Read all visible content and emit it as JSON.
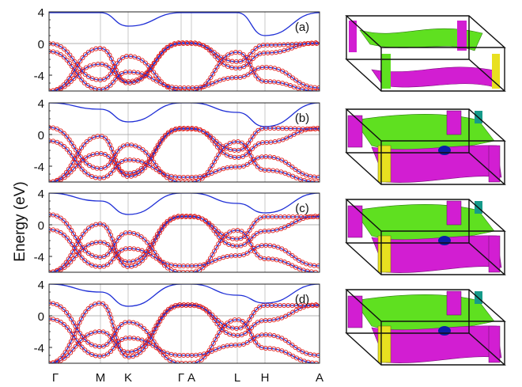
{
  "figure": {
    "ylabel": "Energy (eV)",
    "kpath": [
      "Γ",
      "M",
      "K",
      "Γ",
      "A",
      "L",
      "H",
      "A"
    ]
  },
  "colors": {
    "dft_line": "#1f2fd6",
    "wannier_circle": "#e0201c",
    "fermi_green": "#5fe020",
    "fermi_magenta": "#d21ed2",
    "fermi_yellow": "#e8e020",
    "fermi_blue": "#0a1fa6",
    "fermi_teal": "#169a8a",
    "box": "#111111"
  },
  "chart_data": [
    {
      "type": "line",
      "panel": "(a)",
      "ylim": [
        -6,
        4
      ],
      "yticks": [
        "4",
        "0",
        "-4"
      ],
      "fermi_level": 0,
      "kpath": [
        "Γ",
        "M",
        "K",
        "Γ",
        "A",
        "L",
        "H",
        "A"
      ],
      "series": [
        {
          "values": [
            -6.0,
            -2.6,
            -4.8,
            0.1,
            0.1,
            -3.1,
            -1.2,
            0.1
          ]
        },
        {
          "values": [
            -6.0,
            -0.6,
            -5.0,
            0.0,
            0.0,
            -2.3,
            -0.2,
            0.0
          ]
        },
        {
          "values": [
            0.0,
            -4.6,
            -1.6,
            -6.0,
            -6.0,
            -1.1,
            -4.8,
            -6.0
          ]
        },
        {
          "values": [
            -1.0,
            -5.8,
            -3.6,
            -5.6,
            -5.6,
            -4.3,
            -3.0,
            -5.6
          ]
        },
        {
          "values": [
            3.9,
            3.9,
            2.2,
            3.9,
            3.9,
            3.9,
            1.0,
            3.9
          ]
        }
      ]
    },
    {
      "type": "line",
      "panel": "(b)",
      "ylim": [
        -6,
        4
      ],
      "yticks": [
        "4",
        "0",
        "-4"
      ],
      "fermi_level": 0,
      "kpath": [
        "Γ",
        "M",
        "K",
        "Γ",
        "A",
        "L",
        "H",
        "A"
      ],
      "series": [
        {
          "values": [
            -6.0,
            -2.4,
            -4.9,
            0.8,
            0.8,
            -2.9,
            -1.0,
            0.8
          ]
        },
        {
          "values": [
            -6.0,
            -0.2,
            -5.3,
            0.7,
            0.7,
            -2.0,
            0.8,
            0.7
          ]
        },
        {
          "values": [
            0.9,
            -4.3,
            -1.3,
            -6.0,
            -6.0,
            -0.9,
            -4.5,
            -6.0
          ]
        },
        {
          "values": [
            -0.8,
            -5.5,
            -3.2,
            -5.4,
            -5.4,
            -4.1,
            -2.8,
            -5.4
          ]
        },
        {
          "values": [
            4.0,
            3.2,
            1.6,
            4.0,
            4.0,
            2.8,
            1.0,
            4.0
          ]
        }
      ]
    },
    {
      "type": "line",
      "panel": "(c)",
      "ylim": [
        -6,
        4
      ],
      "yticks": [
        "4",
        "0",
        "-4"
      ],
      "fermi_level": 0,
      "kpath": [
        "Γ",
        "M",
        "K",
        "Γ",
        "A",
        "L",
        "H",
        "A"
      ],
      "series": [
        {
          "values": [
            -6.0,
            -2.2,
            -4.7,
            1.1,
            1.1,
            -2.7,
            -0.8,
            1.1
          ]
        },
        {
          "values": [
            -6.0,
            0.1,
            -5.3,
            1.0,
            1.0,
            -1.8,
            1.0,
            1.0
          ]
        },
        {
          "values": [
            1.3,
            -4.1,
            -1.0,
            -6.0,
            -6.0,
            -0.7,
            -4.3,
            -6.0
          ]
        },
        {
          "values": [
            -0.6,
            -5.3,
            -3.0,
            -5.2,
            -5.2,
            -3.9,
            -2.6,
            -5.2
          ]
        },
        {
          "values": [
            4.0,
            3.0,
            1.3,
            4.0,
            4.0,
            2.7,
            1.5,
            4.0
          ]
        }
      ]
    },
    {
      "type": "line",
      "panel": "(d)",
      "ylim": [
        -6,
        4
      ],
      "yticks": [
        "4",
        "0",
        "-4"
      ],
      "fermi_level": 0,
      "kpath": [
        "Γ",
        "M",
        "K",
        "Γ",
        "A",
        "L",
        "H",
        "A"
      ],
      "series": [
        {
          "values": [
            -6.0,
            -2.0,
            -4.6,
            1.4,
            1.4,
            -2.5,
            -0.6,
            1.4
          ]
        },
        {
          "values": [
            -6.0,
            1.6,
            -5.2,
            1.3,
            1.3,
            -1.6,
            1.3,
            1.3
          ]
        },
        {
          "values": [
            1.6,
            -3.9,
            -0.8,
            -6.0,
            -6.0,
            -0.5,
            -4.1,
            -6.0
          ]
        },
        {
          "values": [
            -0.4,
            -5.1,
            -2.8,
            -5.0,
            -5.0,
            -3.7,
            -2.4,
            -5.0
          ]
        },
        {
          "values": [
            4.0,
            3.0,
            1.2,
            4.0,
            4.0,
            2.6,
            1.6,
            4.0
          ]
        }
      ]
    }
  ],
  "fermi_surfaces": [
    {
      "panel": "(a)"
    },
    {
      "panel": "(b)"
    },
    {
      "panel": "(c)"
    },
    {
      "panel": "(d)"
    }
  ]
}
